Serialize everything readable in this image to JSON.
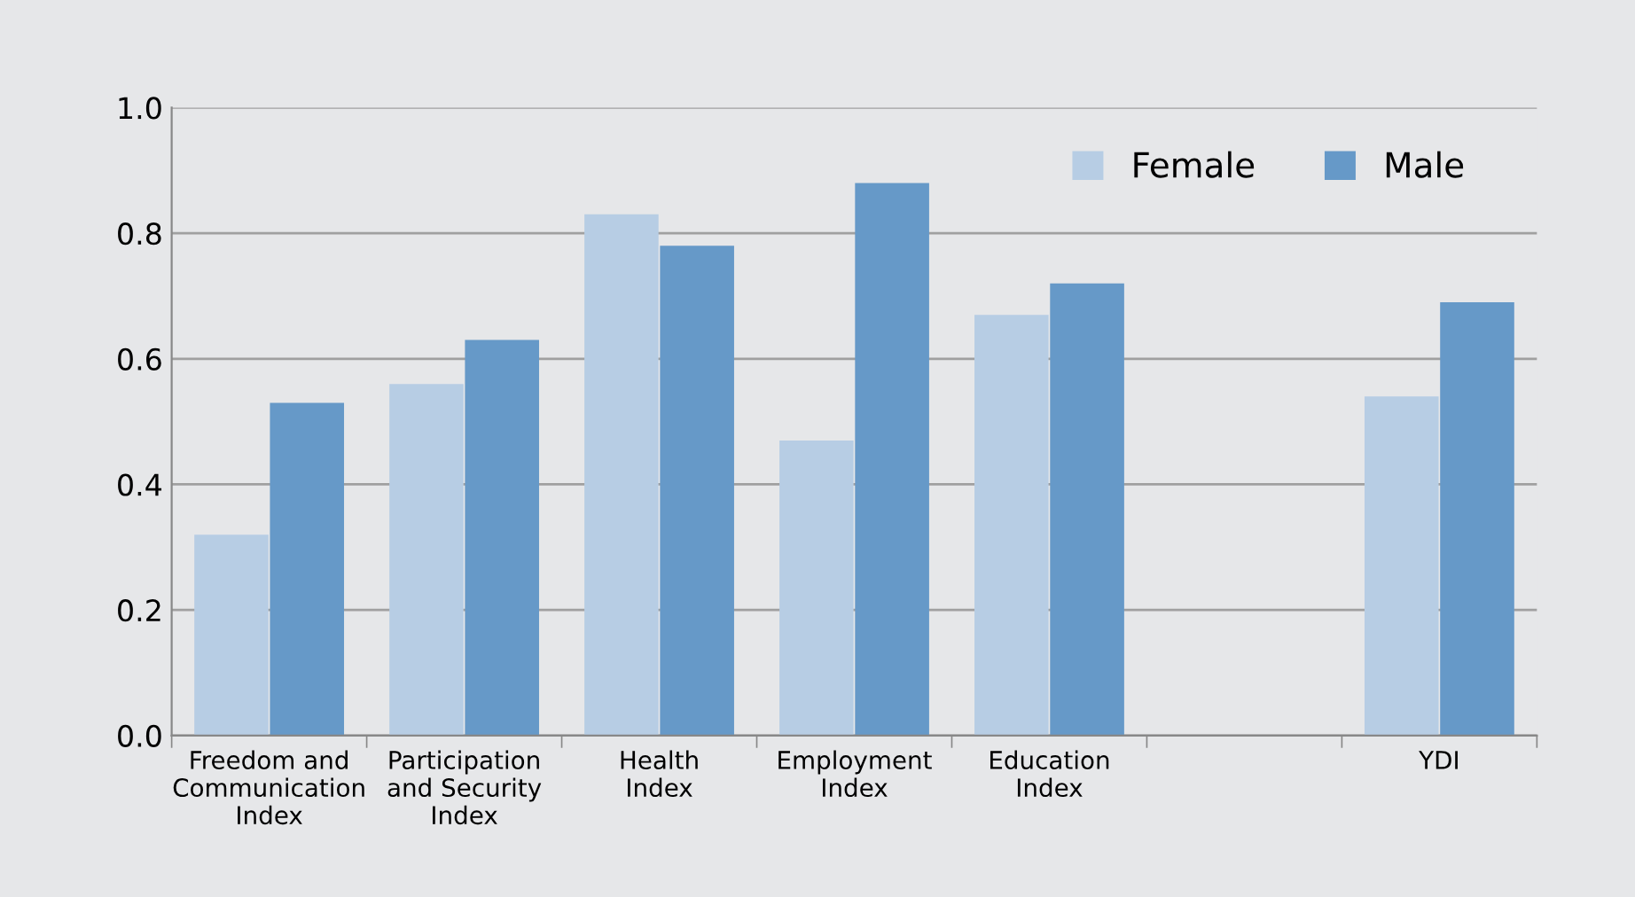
{
  "chart_data": {
    "type": "bar",
    "categories": [
      "Freedom and\nCommunication\nIndex",
      "Participation\nand Security\nIndex",
      "Health\nIndex",
      "Employment\nIndex",
      "Education\nIndex",
      null,
      "YDI"
    ],
    "series": [
      {
        "name": "Female",
        "color": "#b7cde4",
        "values": [
          0.32,
          0.56,
          0.83,
          0.47,
          0.67,
          null,
          0.54
        ]
      },
      {
        "name": "Male",
        "color": "#6699c8",
        "values": [
          0.53,
          0.63,
          0.78,
          0.88,
          0.72,
          null,
          0.69
        ]
      }
    ],
    "ylim": [
      0,
      1.0
    ],
    "yticks": [
      {
        "value": 0,
        "label": "0.0"
      },
      {
        "value": 0.2,
        "label": "0.2"
      },
      {
        "value": 0.4,
        "label": "0.4"
      },
      {
        "value": 0.6,
        "label": "0.6"
      },
      {
        "value": 0.8,
        "label": "0.8"
      },
      {
        "value": 1.0,
        "label": "1.0"
      }
    ],
    "grid": "y",
    "legend": "top right"
  }
}
